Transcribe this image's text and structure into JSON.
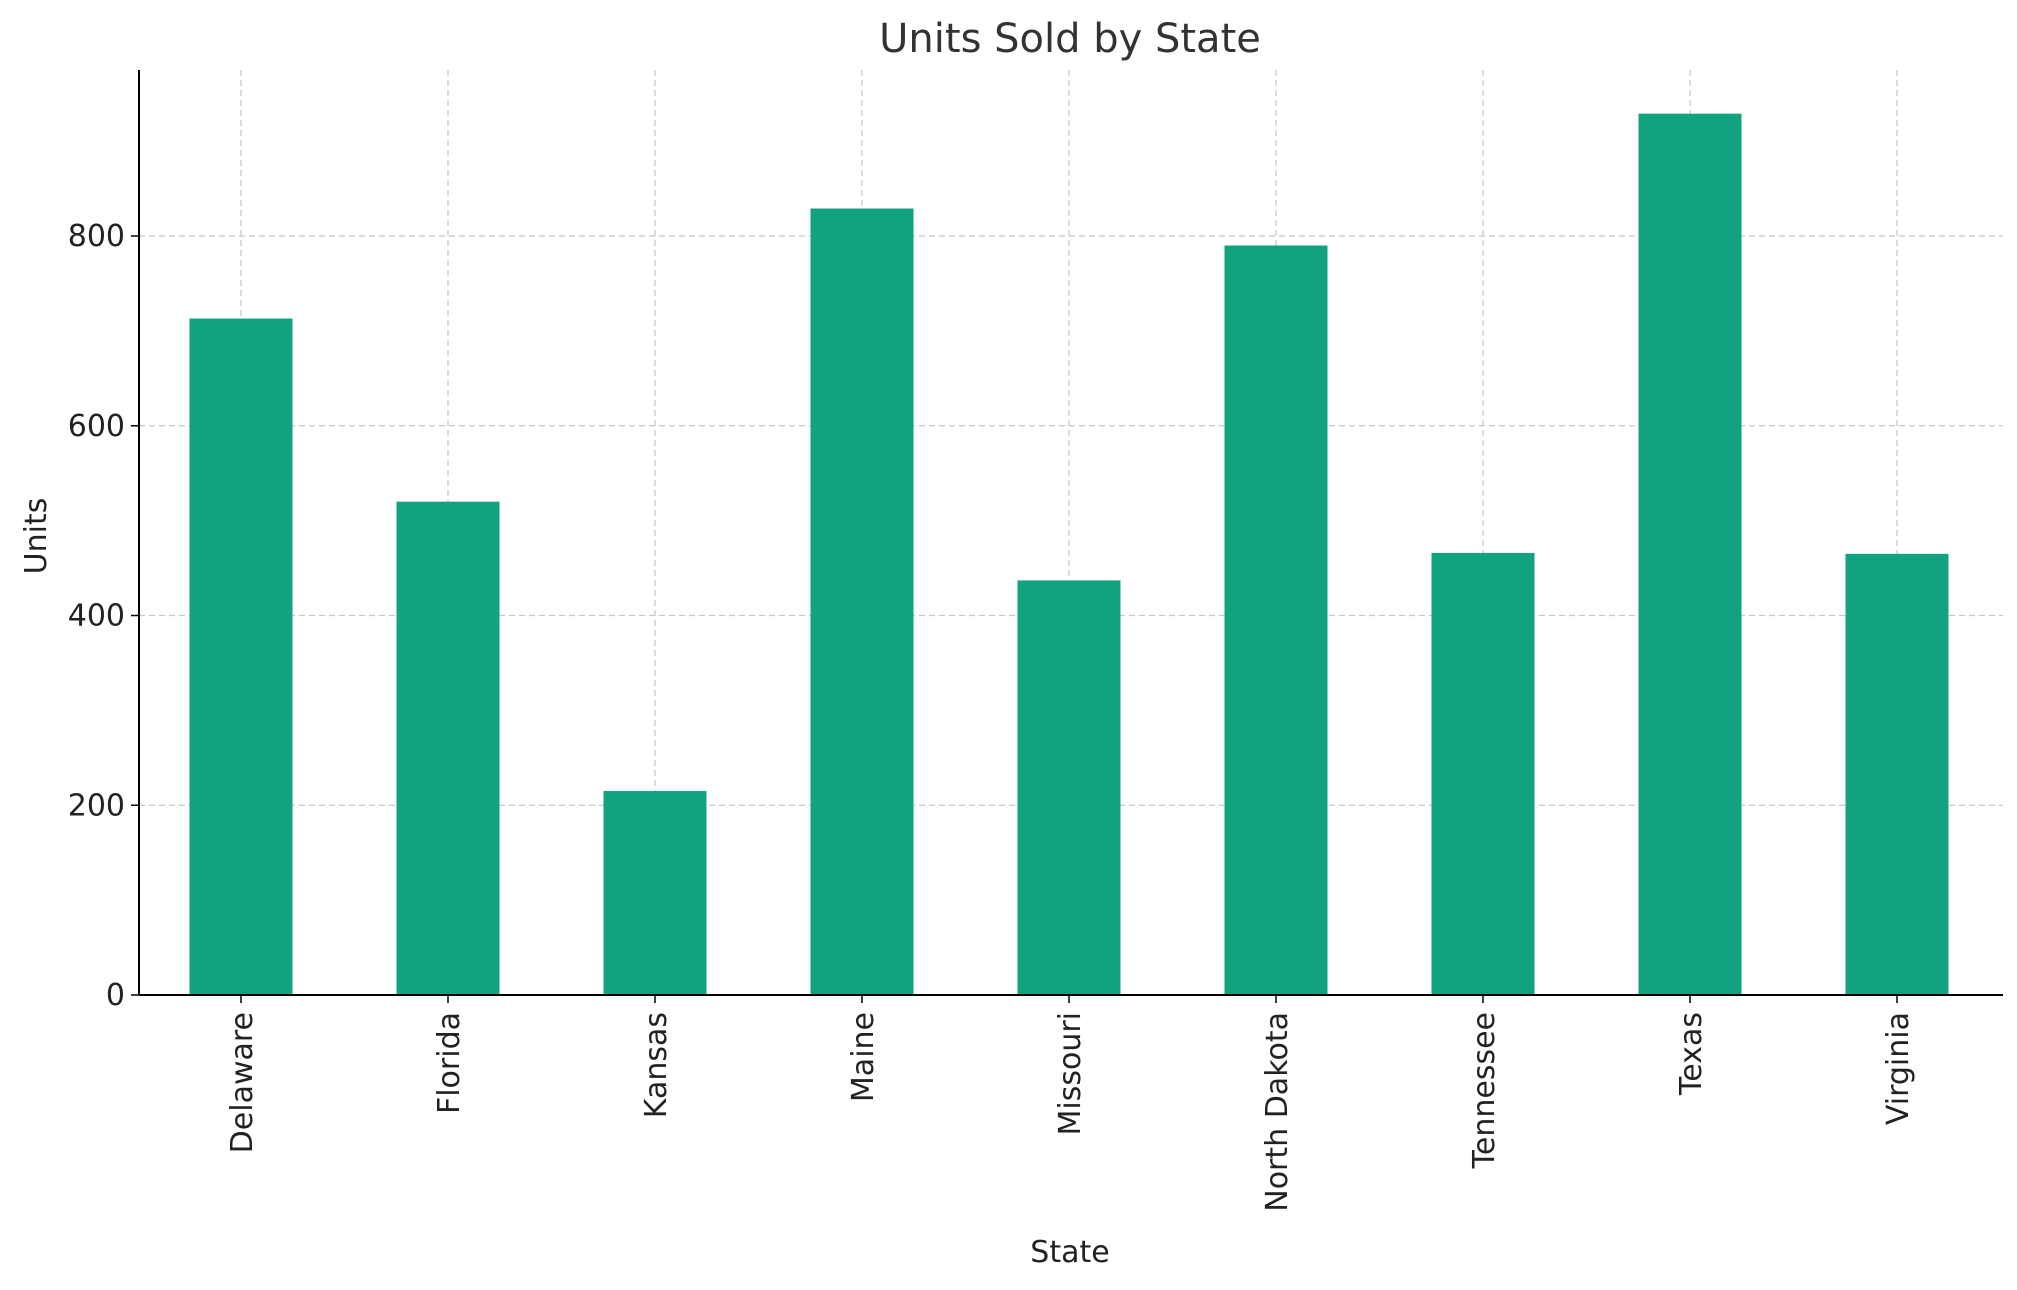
{
  "chart_data": {
    "type": "bar",
    "title": "Units Sold by State",
    "xlabel": "State",
    "ylabel": "Units",
    "categories": [
      "Delaware",
      "Florida",
      "Kansas",
      "Maine",
      "Missouri",
      "North Dakota",
      "Tennessee",
      "Texas",
      "Virginia"
    ],
    "values": [
      713,
      520,
      215,
      829,
      437,
      790,
      466,
      929,
      465
    ],
    "ylim": [
      0,
      975
    ],
    "yticks": [
      0,
      200,
      400,
      600,
      800
    ],
    "grid": true,
    "bar_color": "#11a37f"
  }
}
